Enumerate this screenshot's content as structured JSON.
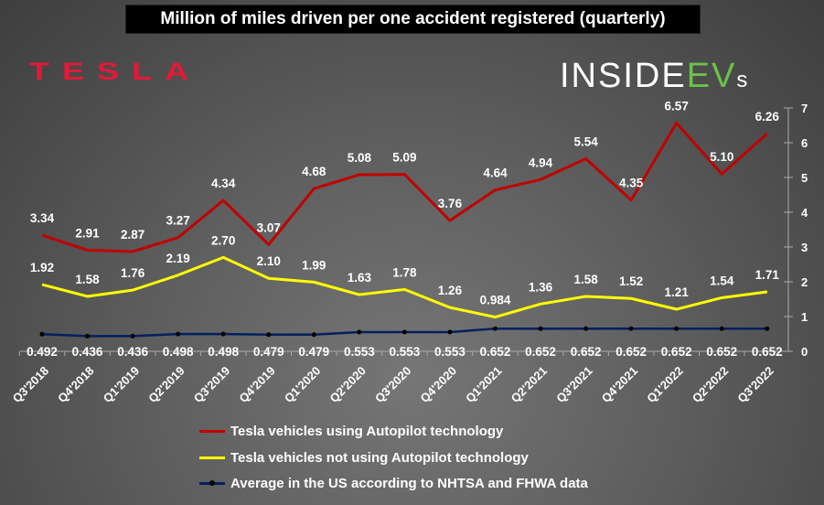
{
  "chart_data": {
    "type": "line",
    "title": "Million of miles driven per one accident registered (quarterly)",
    "categories": [
      "Q3'2018",
      "Q4'2018",
      "Q1'2019",
      "Q2'2019",
      "Q3'2019",
      "Q4'2019",
      "Q1'2020",
      "Q2'2020",
      "Q3'2020",
      "Q4'2020",
      "Q1'2021",
      "Q2'2021",
      "Q3'2021",
      "Q4'2021",
      "Q1'2022",
      "Q2'2022",
      "Q3'2022"
    ],
    "series": [
      {
        "name": "Tesla vehicles using Autopilot technology",
        "color": "#c00000",
        "values": [
          3.34,
          2.91,
          2.87,
          3.27,
          4.34,
          3.07,
          4.68,
          5.08,
          5.09,
          3.76,
          4.64,
          4.94,
          5.54,
          4.35,
          6.57,
          5.1,
          6.26
        ],
        "labels": [
          "3.34",
          "2.91",
          "2.87",
          "3.27",
          "4.34",
          "3.07",
          "4.68",
          "5.08",
          "5.09",
          "3.76",
          "4.64",
          "4.94",
          "5.54",
          "4.35",
          "6.57",
          "5.10",
          "6.26"
        ]
      },
      {
        "name": "Tesla vehicles not using Autopilot technology",
        "color": "#ffff00",
        "values": [
          1.92,
          1.58,
          1.76,
          2.19,
          2.7,
          2.1,
          1.99,
          1.63,
          1.78,
          1.26,
          0.984,
          1.36,
          1.58,
          1.52,
          1.21,
          1.54,
          1.71
        ],
        "labels": [
          "1.92",
          "1.58",
          "1.76",
          "2.19",
          "2.70",
          "2.10",
          "1.99",
          "1.63",
          "1.78",
          "1.26",
          "0.984",
          "1.36",
          "1.58",
          "1.52",
          "1.21",
          "1.54",
          "1.71"
        ]
      },
      {
        "name": "Average in the US according to NHTSA and FHWA data",
        "color": "#002060",
        "values": [
          0.492,
          0.436,
          0.436,
          0.498,
          0.498,
          0.479,
          0.479,
          0.553,
          0.553,
          0.553,
          0.652,
          0.652,
          0.652,
          0.652,
          0.652,
          0.652,
          0.652
        ],
        "labels": [
          "0.492",
          "0.436",
          "0.436",
          "0.498",
          "0.498",
          "0.479",
          "0.479",
          "0.553",
          "0.553",
          "0.553",
          "0.652",
          "0.652",
          "0.652",
          "0.652",
          "0.652",
          "0.652",
          "0.652"
        ]
      }
    ],
    "ylim": [
      0,
      7
    ],
    "yticks": [
      "0",
      "1",
      "2",
      "3",
      "4",
      "5",
      "6",
      "7"
    ],
    "y_axis_side": "right",
    "grid": false,
    "legend": "bottom"
  },
  "logos": {
    "tesla": "TESLA",
    "insideevs_a": "INSIDE",
    "insideevs_b": "EV",
    "insideevs_c": "s"
  }
}
